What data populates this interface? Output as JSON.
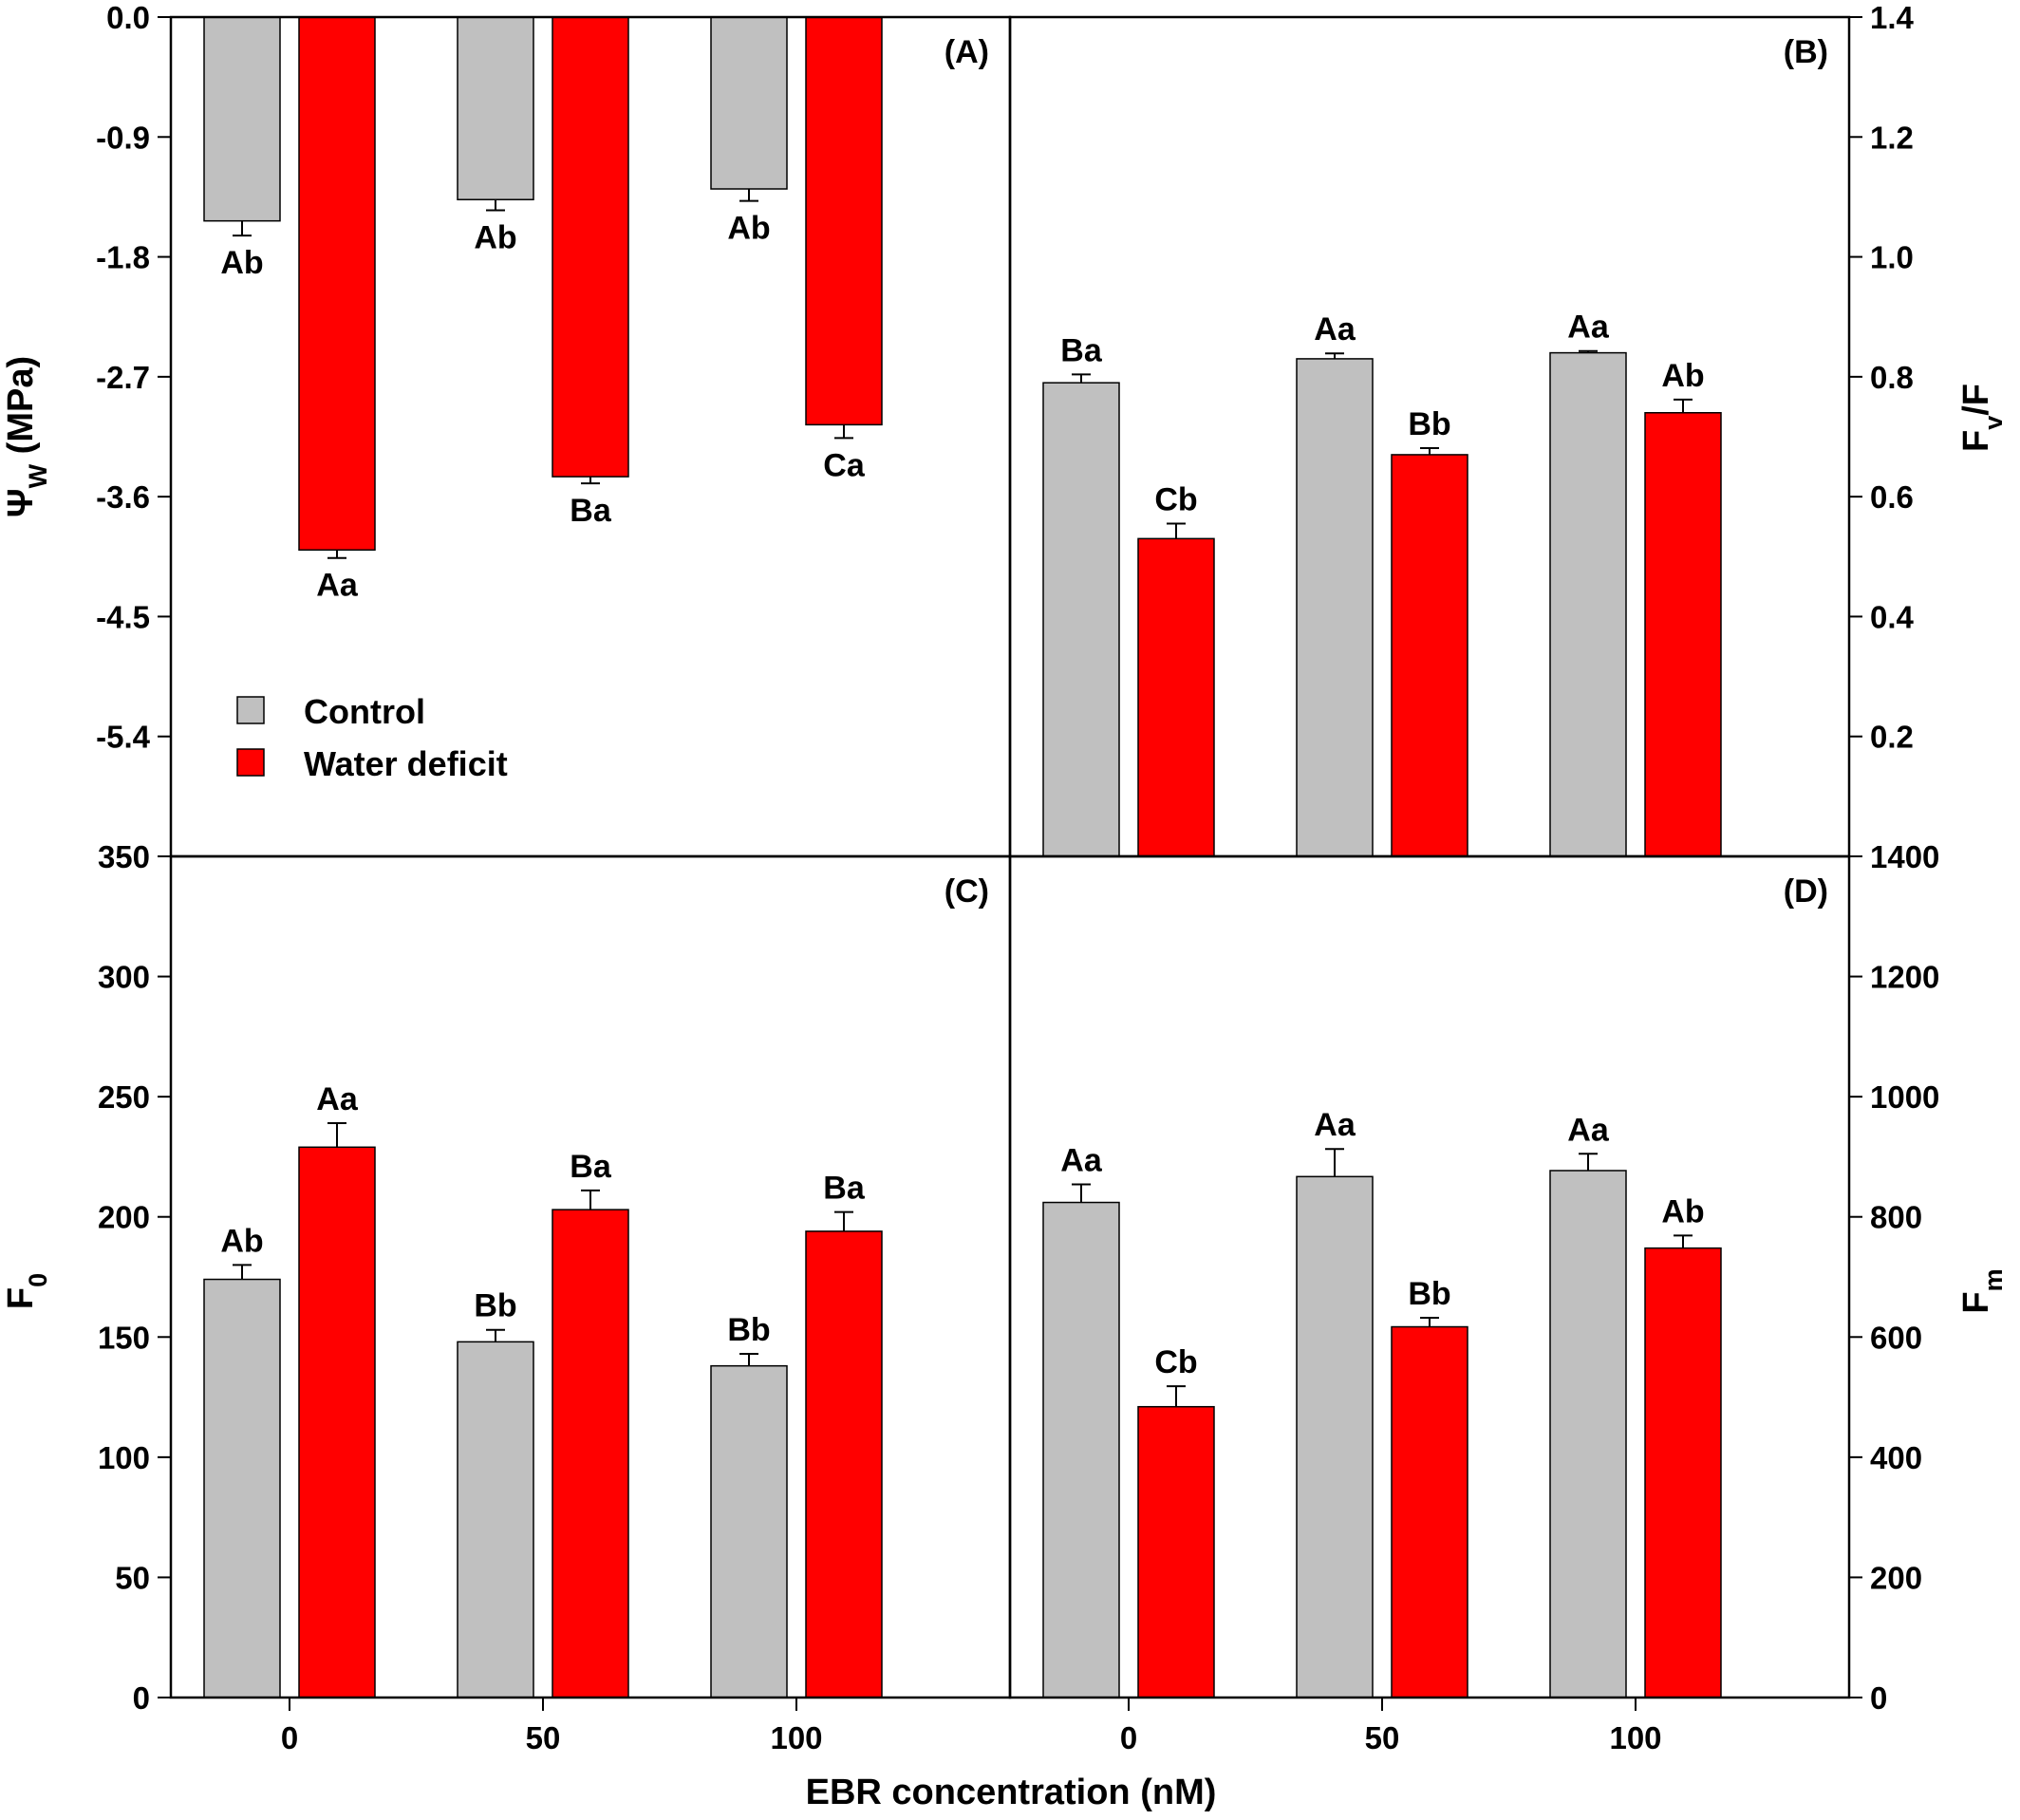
{
  "chart_data": [
    {
      "panel": "(A)",
      "type": "bar",
      "categories": [
        "0",
        "50",
        "100"
      ],
      "series": [
        {
          "name": "Control",
          "values": [
            -1.53,
            -1.37,
            -1.29
          ],
          "errors": [
            0.11,
            0.08,
            0.09
          ],
          "letters": [
            "Ab",
            "Ab",
            "Ab"
          ]
        },
        {
          "name": "Water deficit",
          "values": [
            -4.0,
            -3.45,
            -3.06
          ],
          "errors": [
            0.06,
            0.05,
            0.1
          ],
          "letters": [
            "Aa",
            "Ba",
            "Ca"
          ]
        }
      ],
      "ylabel": "ΨW (MPa)",
      "ylim": [
        -6.3,
        0
      ],
      "yticks": [
        "0.0",
        "-0.9",
        "-1.8",
        "-2.7",
        "-3.6",
        "-4.5",
        "-5.4"
      ],
      "y_axis_side": "left"
    },
    {
      "panel": "(B)",
      "type": "bar",
      "categories": [
        "0",
        "50",
        "100"
      ],
      "series": [
        {
          "name": "Control",
          "values": [
            0.79,
            0.83,
            0.84
          ],
          "errors": [
            0.014,
            0.009,
            0.003
          ],
          "letters": [
            "Ba",
            "Aa",
            "Aa"
          ]
        },
        {
          "name": "Water deficit",
          "values": [
            0.53,
            0.67,
            0.74
          ],
          "errors": [
            0.025,
            0.011,
            0.022
          ],
          "letters": [
            "Cb",
            "Bb",
            "Ab"
          ]
        }
      ],
      "ylabel": "Fv/Fm",
      "ylim": [
        0,
        1.4
      ],
      "yticks": [
        "0.2",
        "0.4",
        "0.6",
        "0.8",
        "1.0",
        "1.2",
        "1.4"
      ],
      "y_axis_side": "right"
    },
    {
      "panel": "(C)",
      "type": "bar",
      "categories": [
        "0",
        "50",
        "100"
      ],
      "series": [
        {
          "name": "Control",
          "values": [
            174,
            148,
            138
          ],
          "errors": [
            6,
            5,
            5
          ],
          "letters": [
            "Ab",
            "Bb",
            "Bb"
          ]
        },
        {
          "name": "Water deficit",
          "values": [
            229,
            203,
            194
          ],
          "errors": [
            10,
            8,
            8
          ],
          "letters": [
            "Aa",
            "Ba",
            "Ba"
          ]
        }
      ],
      "ylabel": "F0",
      "ylim": [
        0,
        350
      ],
      "yticks": [
        "0",
        "50",
        "100",
        "150",
        "200",
        "250",
        "300",
        "350"
      ],
      "y_axis_side": "left"
    },
    {
      "panel": "(D)",
      "type": "bar",
      "categories": [
        "0",
        "50",
        "100"
      ],
      "series": [
        {
          "name": "Control",
          "values": [
            824,
            867,
            877
          ],
          "errors": [
            30,
            46,
            28
          ],
          "letters": [
            "Aa",
            "Aa",
            "Aa"
          ]
        },
        {
          "name": "Water deficit",
          "values": [
            484,
            617,
            748
          ],
          "errors": [
            34,
            15,
            21
          ],
          "letters": [
            "Cb",
            "Bb",
            "Ab"
          ]
        }
      ],
      "ylabel": "Fm",
      "ylim": [
        0,
        1400
      ],
      "yticks": [
        "0",
        "200",
        "400",
        "600",
        "800",
        "1000",
        "1200",
        "1400"
      ],
      "y_axis_side": "right"
    }
  ],
  "legend": {
    "placement": "inside panel (A), lower-left",
    "entries": [
      {
        "label": "Control",
        "color": "#c0c0c0"
      },
      {
        "label": "Water deficit",
        "color": "#ff0000"
      }
    ]
  },
  "xlabel": "EBR concentration (nM)",
  "colors": {
    "control": "#c0c0c0",
    "water_deficit": "#ff0000",
    "axis": "#000000"
  }
}
